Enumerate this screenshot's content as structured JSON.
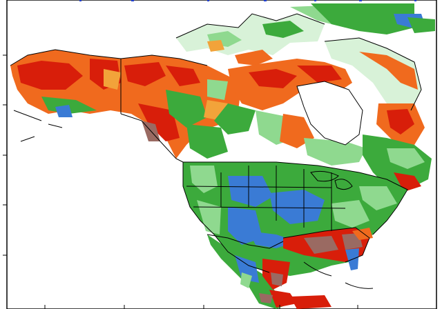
{
  "map": {
    "type": "gridded anomaly map",
    "region": "North America",
    "legend_shown": false,
    "title_visible": false,
    "palette": {
      "background": "#ffffff",
      "land_outline": "#000000",
      "very_wet": "#3a7bd5",
      "wet": "#3caa3c",
      "slightly_wet": "#8fd98f",
      "near_normal": "#d8f2d8",
      "slightly_dry": "#f2a33a",
      "dry": "#f06a1e",
      "very_dry": "#d81e0a",
      "extreme_dry": "#9a6a62"
    }
  }
}
